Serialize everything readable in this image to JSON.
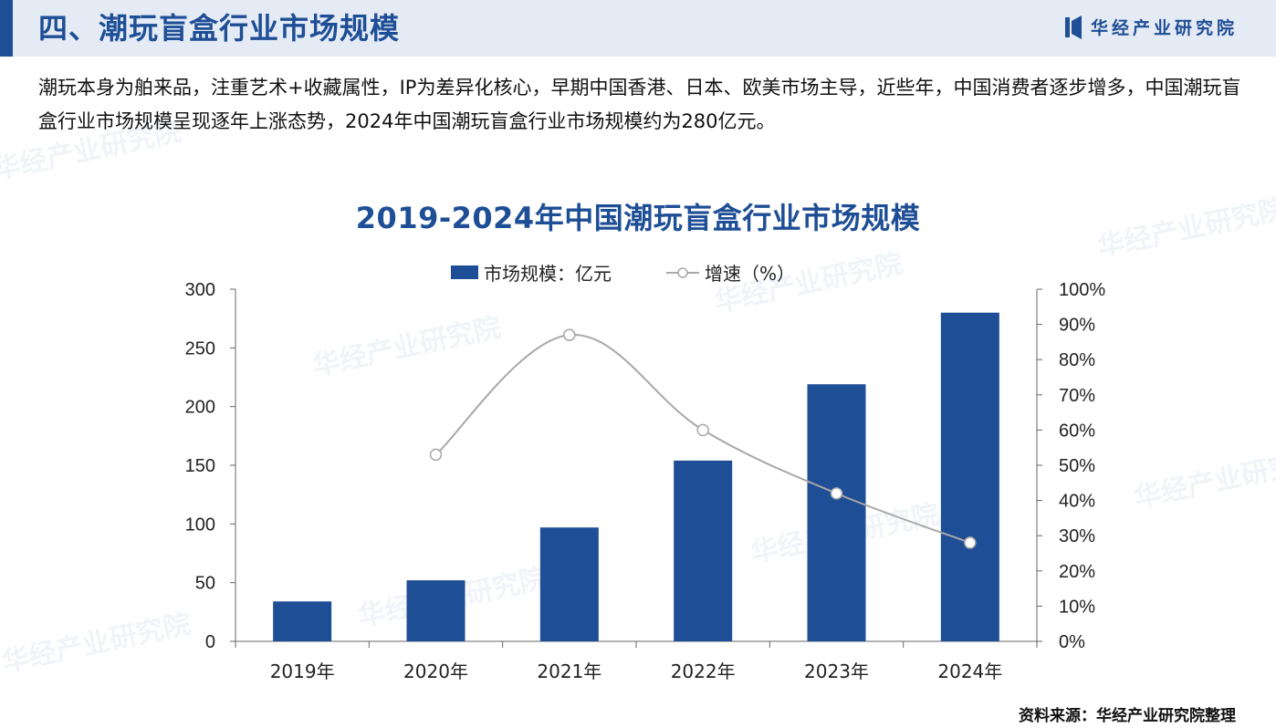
{
  "header": {
    "title": "四、潮玩盲盒行业市场规模",
    "brand": "华经产业研究院"
  },
  "intro": "潮玩本身为舶来品，注重艺术+收藏属性，IP为差异化核心，早期中国香港、日本、欧美市场主导，近些年，中国消费者逐步增多，中国潮玩盲盒行业市场规模呈现逐年上涨态势，2024年中国潮玩盲盒行业市场规模约为280亿元。",
  "source": "资料来源：华经产业研究院整理",
  "colors": {
    "brand": "#1e4e95",
    "header_bg": "#e4ebf5",
    "line": "#a8a8a8",
    "marker_fill": "#ffffff"
  },
  "chart_data": {
    "type": "bar",
    "title": "2019-2024年中国潮玩盲盒行业市场规模",
    "categories": [
      "2019年",
      "2020年",
      "2021年",
      "2022年",
      "2023年",
      "2024年"
    ],
    "series": [
      {
        "name": "市场规模：亿元",
        "type": "bar",
        "axis": "left",
        "values": [
          34,
          52,
          97,
          154,
          219,
          280
        ]
      },
      {
        "name": "增速（%）",
        "type": "line",
        "axis": "right",
        "values": [
          null,
          53,
          87,
          60,
          42,
          28
        ]
      }
    ],
    "ylim": [
      0,
      300
    ],
    "yticks": [
      "0",
      "50",
      "100",
      "150",
      "200",
      "250",
      "300"
    ],
    "y2lim": [
      0,
      100
    ],
    "y2ticks": [
      "0%",
      "10%",
      "20%",
      "30%",
      "40%",
      "50%",
      "60%",
      "70%",
      "80%",
      "90%",
      "100%"
    ],
    "legend_position": "top-center",
    "grid": false
  },
  "watermark": "华经产业研究院"
}
